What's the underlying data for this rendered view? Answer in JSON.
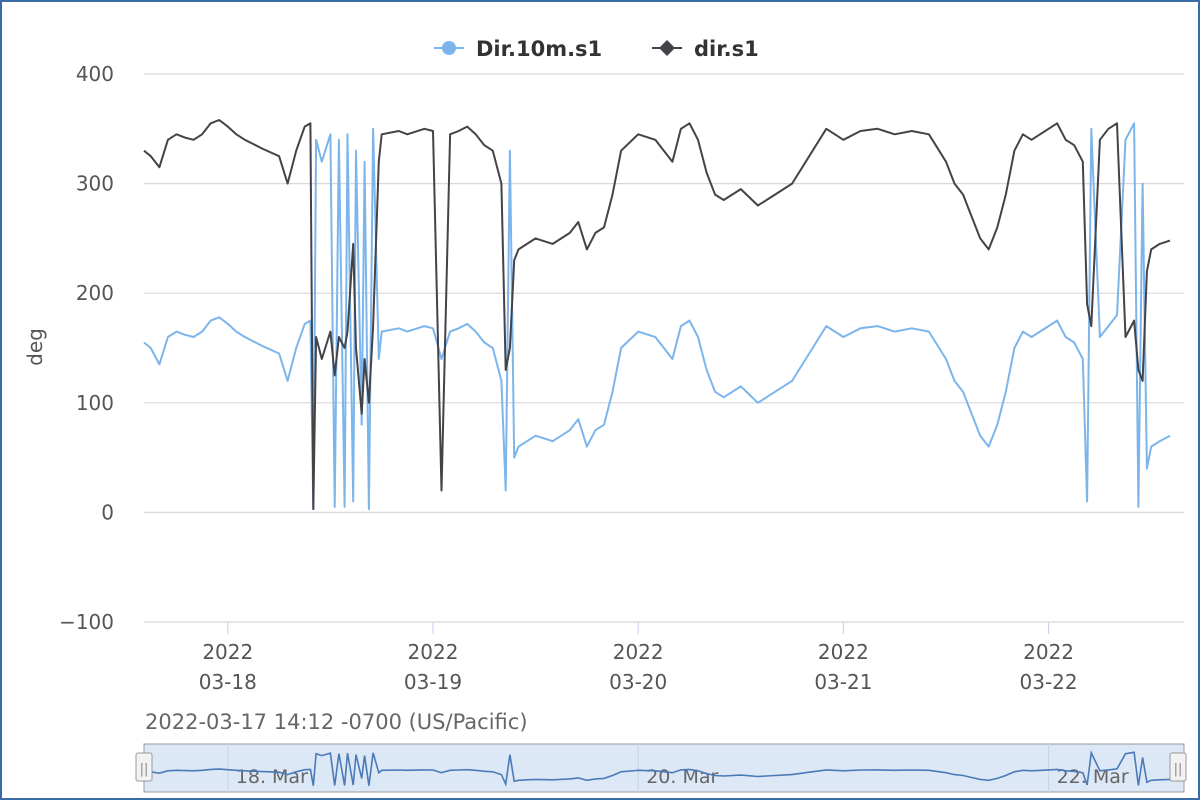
{
  "chart_data": {
    "type": "line",
    "ylabel": "deg",
    "ylim": [
      -100,
      400
    ],
    "yticks": [
      400,
      300,
      200,
      100,
      0,
      -100
    ],
    "x_range": [
      "2022-03-17T14:12",
      "2022-03-22T14:12"
    ],
    "x_ticks": [
      {
        "date": "2022-03-18",
        "label_year": "2022",
        "label_date": "03-18"
      },
      {
        "date": "2022-03-19",
        "label_year": "2022",
        "label_date": "03-19"
      },
      {
        "date": "2022-03-20",
        "label_year": "2022",
        "label_date": "03-20"
      },
      {
        "date": "2022-03-21",
        "label_year": "2022",
        "label_date": "03-21"
      },
      {
        "date": "2022-03-22",
        "label_year": "2022",
        "label_date": "03-22"
      }
    ],
    "grid": true,
    "legend_position": "top-center",
    "series": [
      {
        "name": "Dir.10m.s1",
        "color": "#7cb5ec",
        "marker": "circle",
        "points": [
          [
            "2022-03-17T14:12",
            155
          ],
          [
            "2022-03-17T15:00",
            150
          ],
          [
            "2022-03-17T16:00",
            135
          ],
          [
            "2022-03-17T17:00",
            160
          ],
          [
            "2022-03-17T18:00",
            165
          ],
          [
            "2022-03-17T19:00",
            162
          ],
          [
            "2022-03-17T20:00",
            160
          ],
          [
            "2022-03-17T21:00",
            165
          ],
          [
            "2022-03-17T22:00",
            175
          ],
          [
            "2022-03-17T23:00",
            178
          ],
          [
            "2022-03-18T00:00",
            172
          ],
          [
            "2022-03-18T01:00",
            165
          ],
          [
            "2022-03-18T02:00",
            160
          ],
          [
            "2022-03-18T04:00",
            152
          ],
          [
            "2022-03-18T06:00",
            145
          ],
          [
            "2022-03-18T07:00",
            120
          ],
          [
            "2022-03-18T08:00",
            150
          ],
          [
            "2022-03-18T09:00",
            172
          ],
          [
            "2022-03-18T09:40",
            175
          ],
          [
            "2022-03-18T10:00",
            3
          ],
          [
            "2022-03-18T10:20",
            340
          ],
          [
            "2022-03-18T11:00",
            320
          ],
          [
            "2022-03-18T12:00",
            345
          ],
          [
            "2022-03-18T12:30",
            5
          ],
          [
            "2022-03-18T13:00",
            340
          ],
          [
            "2022-03-18T13:40",
            5
          ],
          [
            "2022-03-18T14:00",
            345
          ],
          [
            "2022-03-18T14:40",
            10
          ],
          [
            "2022-03-18T15:00",
            330
          ],
          [
            "2022-03-18T15:40",
            80
          ],
          [
            "2022-03-18T16:00",
            320
          ],
          [
            "2022-03-18T16:30",
            3
          ],
          [
            "2022-03-18T17:00",
            350
          ],
          [
            "2022-03-18T17:40",
            140
          ],
          [
            "2022-03-18T18:00",
            165
          ],
          [
            "2022-03-18T20:00",
            168
          ],
          [
            "2022-03-18T21:00",
            165
          ],
          [
            "2022-03-18T23:00",
            170
          ],
          [
            "2022-03-19T00:00",
            168
          ],
          [
            "2022-03-19T01:00",
            140
          ],
          [
            "2022-03-19T02:00",
            165
          ],
          [
            "2022-03-19T03:00",
            168
          ],
          [
            "2022-03-19T04:00",
            172
          ],
          [
            "2022-03-19T05:00",
            165
          ],
          [
            "2022-03-19T06:00",
            155
          ],
          [
            "2022-03-19T07:00",
            150
          ],
          [
            "2022-03-19T08:00",
            120
          ],
          [
            "2022-03-19T08:30",
            20
          ],
          [
            "2022-03-19T09:00",
            330
          ],
          [
            "2022-03-19T09:30",
            50
          ],
          [
            "2022-03-19T10:00",
            60
          ],
          [
            "2022-03-19T11:00",
            65
          ],
          [
            "2022-03-19T12:00",
            70
          ],
          [
            "2022-03-19T14:00",
            65
          ],
          [
            "2022-03-19T16:00",
            75
          ],
          [
            "2022-03-19T17:00",
            85
          ],
          [
            "2022-03-19T18:00",
            60
          ],
          [
            "2022-03-19T19:00",
            75
          ],
          [
            "2022-03-19T20:00",
            80
          ],
          [
            "2022-03-19T21:00",
            110
          ],
          [
            "2022-03-19T22:00",
            150
          ],
          [
            "2022-03-20T00:00",
            165
          ],
          [
            "2022-03-20T02:00",
            160
          ],
          [
            "2022-03-20T04:00",
            140
          ],
          [
            "2022-03-20T05:00",
            170
          ],
          [
            "2022-03-20T06:00",
            175
          ],
          [
            "2022-03-20T07:00",
            160
          ],
          [
            "2022-03-20T08:00",
            130
          ],
          [
            "2022-03-20T09:00",
            110
          ],
          [
            "2022-03-20T10:00",
            105
          ],
          [
            "2022-03-20T12:00",
            115
          ],
          [
            "2022-03-20T14:00",
            100
          ],
          [
            "2022-03-20T16:00",
            110
          ],
          [
            "2022-03-20T18:00",
            120
          ],
          [
            "2022-03-20T20:00",
            145
          ],
          [
            "2022-03-20T22:00",
            170
          ],
          [
            "2022-03-21T00:00",
            160
          ],
          [
            "2022-03-21T02:00",
            168
          ],
          [
            "2022-03-21T04:00",
            170
          ],
          [
            "2022-03-21T06:00",
            165
          ],
          [
            "2022-03-21T08:00",
            168
          ],
          [
            "2022-03-21T10:00",
            165
          ],
          [
            "2022-03-21T12:00",
            140
          ],
          [
            "2022-03-21T13:00",
            120
          ],
          [
            "2022-03-21T14:00",
            110
          ],
          [
            "2022-03-21T15:00",
            90
          ],
          [
            "2022-03-21T16:00",
            70
          ],
          [
            "2022-03-21T17:00",
            60
          ],
          [
            "2022-03-21T18:00",
            80
          ],
          [
            "2022-03-21T19:00",
            110
          ],
          [
            "2022-03-21T20:00",
            150
          ],
          [
            "2022-03-21T21:00",
            165
          ],
          [
            "2022-03-21T22:00",
            160
          ],
          [
            "2022-03-22T00:00",
            170
          ],
          [
            "2022-03-22T01:00",
            175
          ],
          [
            "2022-03-22T02:00",
            160
          ],
          [
            "2022-03-22T03:00",
            155
          ],
          [
            "2022-03-22T04:00",
            140
          ],
          [
            "2022-03-22T04:30",
            10
          ],
          [
            "2022-03-22T05:00",
            350
          ],
          [
            "2022-03-22T06:00",
            160
          ],
          [
            "2022-03-22T07:00",
            170
          ],
          [
            "2022-03-22T08:00",
            180
          ],
          [
            "2022-03-22T09:00",
            340
          ],
          [
            "2022-03-22T10:00",
            355
          ],
          [
            "2022-03-22T10:30",
            5
          ],
          [
            "2022-03-22T11:00",
            300
          ],
          [
            "2022-03-22T11:30",
            40
          ],
          [
            "2022-03-22T12:00",
            60
          ],
          [
            "2022-03-22T13:00",
            65
          ],
          [
            "2022-03-22T14:12",
            70
          ]
        ]
      },
      {
        "name": "dir.s1",
        "color": "#434348",
        "marker": "diamond",
        "points": [
          [
            "2022-03-17T14:12",
            330
          ],
          [
            "2022-03-17T15:00",
            325
          ],
          [
            "2022-03-17T16:00",
            315
          ],
          [
            "2022-03-17T17:00",
            340
          ],
          [
            "2022-03-17T18:00",
            345
          ],
          [
            "2022-03-17T19:00",
            342
          ],
          [
            "2022-03-17T20:00",
            340
          ],
          [
            "2022-03-17T21:00",
            345
          ],
          [
            "2022-03-17T22:00",
            355
          ],
          [
            "2022-03-17T23:00",
            358
          ],
          [
            "2022-03-18T00:00",
            352
          ],
          [
            "2022-03-18T01:00",
            345
          ],
          [
            "2022-03-18T02:00",
            340
          ],
          [
            "2022-03-18T04:00",
            332
          ],
          [
            "2022-03-18T06:00",
            325
          ],
          [
            "2022-03-18T07:00",
            300
          ],
          [
            "2022-03-18T08:00",
            330
          ],
          [
            "2022-03-18T09:00",
            352
          ],
          [
            "2022-03-18T09:40",
            355
          ],
          [
            "2022-03-18T10:00",
            3
          ],
          [
            "2022-03-18T10:20",
            160
          ],
          [
            "2022-03-18T11:00",
            140
          ],
          [
            "2022-03-18T12:00",
            165
          ],
          [
            "2022-03-18T12:30",
            125
          ],
          [
            "2022-03-18T13:00",
            160
          ],
          [
            "2022-03-18T13:40",
            150
          ],
          [
            "2022-03-18T14:00",
            165
          ],
          [
            "2022-03-18T14:40",
            245
          ],
          [
            "2022-03-18T15:00",
            150
          ],
          [
            "2022-03-18T15:40",
            90
          ],
          [
            "2022-03-18T16:00",
            140
          ],
          [
            "2022-03-18T16:30",
            100
          ],
          [
            "2022-03-18T17:00",
            170
          ],
          [
            "2022-03-18T17:40",
            320
          ],
          [
            "2022-03-18T18:00",
            345
          ],
          [
            "2022-03-18T20:00",
            348
          ],
          [
            "2022-03-18T21:00",
            345
          ],
          [
            "2022-03-18T23:00",
            350
          ],
          [
            "2022-03-19T00:00",
            348
          ],
          [
            "2022-03-19T01:00",
            20
          ],
          [
            "2022-03-19T02:00",
            345
          ],
          [
            "2022-03-19T03:00",
            348
          ],
          [
            "2022-03-19T04:00",
            352
          ],
          [
            "2022-03-19T05:00",
            345
          ],
          [
            "2022-03-19T06:00",
            335
          ],
          [
            "2022-03-19T07:00",
            330
          ],
          [
            "2022-03-19T08:00",
            300
          ],
          [
            "2022-03-19T08:30",
            130
          ],
          [
            "2022-03-19T09:00",
            150
          ],
          [
            "2022-03-19T09:30",
            230
          ],
          [
            "2022-03-19T10:00",
            240
          ],
          [
            "2022-03-19T11:00",
            245
          ],
          [
            "2022-03-19T12:00",
            250
          ],
          [
            "2022-03-19T14:00",
            245
          ],
          [
            "2022-03-19T16:00",
            255
          ],
          [
            "2022-03-19T17:00",
            265
          ],
          [
            "2022-03-19T18:00",
            240
          ],
          [
            "2022-03-19T19:00",
            255
          ],
          [
            "2022-03-19T20:00",
            260
          ],
          [
            "2022-03-19T21:00",
            290
          ],
          [
            "2022-03-19T22:00",
            330
          ],
          [
            "2022-03-20T00:00",
            345
          ],
          [
            "2022-03-20T02:00",
            340
          ],
          [
            "2022-03-20T04:00",
            320
          ],
          [
            "2022-03-20T05:00",
            350
          ],
          [
            "2022-03-20T06:00",
            355
          ],
          [
            "2022-03-20T07:00",
            340
          ],
          [
            "2022-03-20T08:00",
            310
          ],
          [
            "2022-03-20T09:00",
            290
          ],
          [
            "2022-03-20T10:00",
            285
          ],
          [
            "2022-03-20T12:00",
            295
          ],
          [
            "2022-03-20T14:00",
            280
          ],
          [
            "2022-03-20T16:00",
            290
          ],
          [
            "2022-03-20T18:00",
            300
          ],
          [
            "2022-03-20T20:00",
            325
          ],
          [
            "2022-03-20T22:00",
            350
          ],
          [
            "2022-03-21T00:00",
            340
          ],
          [
            "2022-03-21T02:00",
            348
          ],
          [
            "2022-03-21T04:00",
            350
          ],
          [
            "2022-03-21T06:00",
            345
          ],
          [
            "2022-03-21T08:00",
            348
          ],
          [
            "2022-03-21T10:00",
            345
          ],
          [
            "2022-03-21T12:00",
            320
          ],
          [
            "2022-03-21T13:00",
            300
          ],
          [
            "2022-03-21T14:00",
            290
          ],
          [
            "2022-03-21T15:00",
            270
          ],
          [
            "2022-03-21T16:00",
            250
          ],
          [
            "2022-03-21T17:00",
            240
          ],
          [
            "2022-03-21T18:00",
            260
          ],
          [
            "2022-03-21T19:00",
            290
          ],
          [
            "2022-03-21T20:00",
            330
          ],
          [
            "2022-03-21T21:00",
            345
          ],
          [
            "2022-03-21T22:00",
            340
          ],
          [
            "2022-03-22T00:00",
            350
          ],
          [
            "2022-03-22T01:00",
            355
          ],
          [
            "2022-03-22T02:00",
            340
          ],
          [
            "2022-03-22T03:00",
            335
          ],
          [
            "2022-03-22T04:00",
            320
          ],
          [
            "2022-03-22T04:30",
            190
          ],
          [
            "2022-03-22T05:00",
            170
          ],
          [
            "2022-03-22T06:00",
            340
          ],
          [
            "2022-03-22T07:00",
            350
          ],
          [
            "2022-03-22T08:00",
            355
          ],
          [
            "2022-03-22T09:00",
            160
          ],
          [
            "2022-03-22T10:00",
            175
          ],
          [
            "2022-03-22T10:30",
            130
          ],
          [
            "2022-03-22T11:00",
            120
          ],
          [
            "2022-03-22T11:30",
            220
          ],
          [
            "2022-03-22T12:00",
            240
          ],
          [
            "2022-03-22T13:00",
            245
          ],
          [
            "2022-03-22T14:12",
            248
          ]
        ]
      }
    ]
  },
  "navigator": {
    "range_label": "2022-03-17 14:12 -0700 (US/Pacific)",
    "labels": [
      {
        "date": "2022-03-18",
        "text": "18. Mar"
      },
      {
        "date": "2022-03-20",
        "text": "20. Mar"
      },
      {
        "date": "2022-03-22",
        "text": "22. Mar"
      }
    ],
    "handle_glyph": "||"
  }
}
